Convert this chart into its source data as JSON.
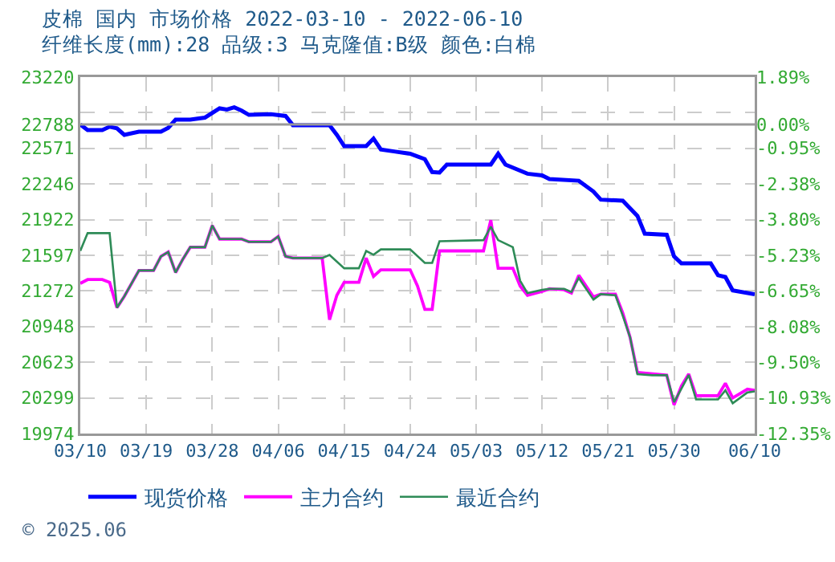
{
  "chart_data": {
    "type": "line",
    "title": "皮棉 国内 市场价格 2022-03-10 - 2022-06-10",
    "subtitle": "纤维长度(mm):28 品级:3 马克隆值:B级 颜色:白棉",
    "annotations": [
      "© 2025.06"
    ],
    "legend": "bottom",
    "grid": true,
    "marker": "none",
    "line_style": "solid",
    "xlim": [
      "2022-03-10",
      "2022-06-10"
    ],
    "xticks": [
      {
        "value": "2022-03-10",
        "label": "03/10"
      },
      {
        "value": "2022-03-19",
        "label": "03/19"
      },
      {
        "value": "2022-03-28",
        "label": "03/28"
      },
      {
        "value": "2022-04-06",
        "label": "04/06"
      },
      {
        "value": "2022-04-15",
        "label": "04/15"
      },
      {
        "value": "2022-04-24",
        "label": "04/24"
      },
      {
        "value": "2022-05-03",
        "label": "05/03"
      },
      {
        "value": "2022-05-12",
        "label": "05/12"
      },
      {
        "value": "2022-05-21",
        "label": "05/21"
      },
      {
        "value": "2022-05-30",
        "label": "05/30"
      },
      {
        "value": "2022-06-10",
        "label": "06/10"
      }
    ],
    "ylim": [
      19974,
      23220
    ],
    "yticks": [
      19974,
      20299,
      20623,
      20948,
      21272,
      21597,
      21922,
      22246,
      22571,
      22788,
      {
        "value": 22895,
        "label": null
      },
      23220
    ],
    "y2lim": [
      -12.35,
      1.89
    ],
    "y2ticks": [
      {
        "value": -12.35,
        "label": "-12.35%"
      },
      {
        "value": -10.93,
        "label": "-10.93%"
      },
      {
        "value": -9.5,
        "label": "-9.50%"
      },
      {
        "value": -8.08,
        "label": "-8.08%"
      },
      {
        "value": -6.65,
        "label": "-6.65%"
      },
      {
        "value": -5.23,
        "label": "-5.23%"
      },
      {
        "value": -3.8,
        "label": "-3.80%"
      },
      {
        "value": -2.38,
        "label": "-2.38%"
      },
      {
        "value": -0.95,
        "label": "-0.95%"
      },
      {
        "value": 0,
        "label": "0.00%"
      },
      {
        "value": 1.89,
        "label": "1.89%"
      }
    ],
    "ref_lines": [
      {
        "axis": "y",
        "value": 22788,
        "color": "#999999",
        "line_style": "solid"
      }
    ],
    "series": [
      {
        "name": "现货价格",
        "color": "#0000ff",
        "x": [
          "2022-03-10",
          "2022-03-11",
          "2022-03-13",
          "2022-03-14",
          "2022-03-15",
          "2022-03-16",
          "2022-03-18",
          "2022-03-21",
          "2022-03-22",
          "2022-03-23",
          "2022-03-25",
          "2022-03-27",
          "2022-03-29",
          "2022-03-30",
          "2022-03-31",
          "2022-04-01",
          "2022-04-02",
          "2022-04-05",
          "2022-04-07",
          "2022-04-08",
          "2022-04-13",
          "2022-04-14",
          "2022-04-15",
          "2022-04-18",
          "2022-04-19",
          "2022-04-20",
          "2022-04-22",
          "2022-04-24",
          "2022-04-25",
          "2022-04-26",
          "2022-04-27",
          "2022-04-28",
          "2022-04-29",
          "2022-05-05",
          "2022-05-06",
          "2022-05-07",
          "2022-05-10",
          "2022-05-12",
          "2022-05-13",
          "2022-05-17",
          "2022-05-19",
          "2022-05-20",
          "2022-05-23",
          "2022-05-25",
          "2022-05-26",
          "2022-05-29",
          "2022-05-30",
          "2022-05-31",
          "2022-06-04",
          "2022-06-05",
          "2022-06-06",
          "2022-06-07",
          "2022-06-10"
        ],
        "values": [
          22788,
          22738,
          22738,
          22768,
          22753,
          22694,
          22723,
          22723,
          22758,
          22832,
          22832,
          22851,
          22935,
          22925,
          22945,
          22915,
          22876,
          22881,
          22866,
          22782,
          22782,
          22694,
          22591,
          22591,
          22660,
          22561,
          22541,
          22522,
          22497,
          22473,
          22355,
          22350,
          22423,
          22423,
          22522,
          22423,
          22340,
          22325,
          22291,
          22276,
          22178,
          22104,
          22094,
          21956,
          21794,
          21784,
          21587,
          21523,
          21523,
          21415,
          21400,
          21278,
          21243
        ]
      },
      {
        "name": "主力合约",
        "color": "#ff00ff",
        "x": [
          "2022-03-10",
          "2022-03-11",
          "2022-03-13",
          "2022-03-14",
          "2022-03-15",
          "2022-03-16",
          "2022-03-18",
          "2022-03-20",
          "2022-03-21",
          "2022-03-22",
          "2022-03-23",
          "2022-03-24",
          "2022-03-25",
          "2022-03-27",
          "2022-03-28",
          "2022-03-29",
          "2022-04-01",
          "2022-04-02",
          "2022-04-05",
          "2022-04-06",
          "2022-04-07",
          "2022-04-08",
          "2022-04-12",
          "2022-04-13",
          "2022-04-14",
          "2022-04-15",
          "2022-04-17",
          "2022-04-18",
          "2022-04-19",
          "2022-04-20",
          "2022-04-24",
          "2022-04-25",
          "2022-04-26",
          "2022-04-27",
          "2022-04-28",
          "2022-05-04",
          "2022-05-05",
          "2022-05-06",
          "2022-05-08",
          "2022-05-09",
          "2022-05-10",
          "2022-05-12",
          "2022-05-13",
          "2022-05-15",
          "2022-05-16",
          "2022-05-17",
          "2022-05-19",
          "2022-05-20",
          "2022-05-22",
          "2022-05-23",
          "2022-05-24",
          "2022-05-25",
          "2022-05-29",
          "2022-05-30",
          "2022-05-31",
          "2022-06-01",
          "2022-06-02",
          "2022-06-05",
          "2022-06-06",
          "2022-06-07",
          "2022-06-09",
          "2022-06-10"
        ],
        "values": [
          21341,
          21376,
          21376,
          21351,
          21120,
          21223,
          21459,
          21459,
          21587,
          21627,
          21440,
          21563,
          21671,
          21671,
          21868,
          21745,
          21745,
          21720,
          21720,
          21769,
          21587,
          21572,
          21572,
          21010,
          21233,
          21351,
          21351,
          21572,
          21405,
          21465,
          21465,
          21317,
          21105,
          21105,
          21637,
          21637,
          21917,
          21479,
          21479,
          21317,
          21233,
          21268,
          21292,
          21283,
          21253,
          21415,
          21219,
          21243,
          21243,
          21071,
          20850,
          20530,
          20505,
          20235,
          20407,
          20516,
          20319,
          20319,
          20432,
          20299,
          20378,
          20368
        ]
      },
      {
        "name": "最近合约",
        "color": "#2e8b57",
        "x": [
          "2022-03-10",
          "2022-03-11",
          "2022-03-14",
          "2022-03-15",
          "2022-03-16",
          "2022-03-18",
          "2022-03-20",
          "2022-03-21",
          "2022-03-22",
          "2022-03-23",
          "2022-03-24",
          "2022-03-25",
          "2022-03-27",
          "2022-03-28",
          "2022-03-29",
          "2022-04-01",
          "2022-04-02",
          "2022-04-05",
          "2022-04-06",
          "2022-04-07",
          "2022-04-08",
          "2022-04-12",
          "2022-04-13",
          "2022-04-15",
          "2022-04-17",
          "2022-04-18",
          "2022-04-19",
          "2022-04-20",
          "2022-04-24",
          "2022-04-26",
          "2022-04-27",
          "2022-04-28",
          "2022-05-04",
          "2022-05-05",
          "2022-05-06",
          "2022-05-08",
          "2022-05-09",
          "2022-05-10",
          "2022-05-12",
          "2022-05-13",
          "2022-05-15",
          "2022-05-16",
          "2022-05-17",
          "2022-05-19",
          "2022-05-20",
          "2022-05-22",
          "2022-05-23",
          "2022-05-24",
          "2022-05-25",
          "2022-05-27",
          "2022-05-29",
          "2022-05-30",
          "2022-05-31",
          "2022-06-01",
          "2022-06-02",
          "2022-06-05",
          "2022-06-06",
          "2022-06-07",
          "2022-06-09",
          "2022-06-10"
        ],
        "values": [
          21637,
          21799,
          21799,
          21120,
          21223,
          21459,
          21459,
          21587,
          21627,
          21440,
          21563,
          21671,
          21671,
          21868,
          21745,
          21745,
          21720,
          21720,
          21769,
          21587,
          21572,
          21572,
          21601,
          21479,
          21479,
          21637,
          21602,
          21651,
          21651,
          21528,
          21528,
          21725,
          21735,
          21858,
          21735,
          21671,
          21366,
          21253,
          21282,
          21292,
          21292,
          21263,
          21391,
          21194,
          21243,
          21233,
          21046,
          20850,
          20515,
          20505,
          20505,
          20260,
          20383,
          20507,
          20285,
          20285,
          20368,
          20250,
          20348,
          20358
        ]
      }
    ]
  }
}
